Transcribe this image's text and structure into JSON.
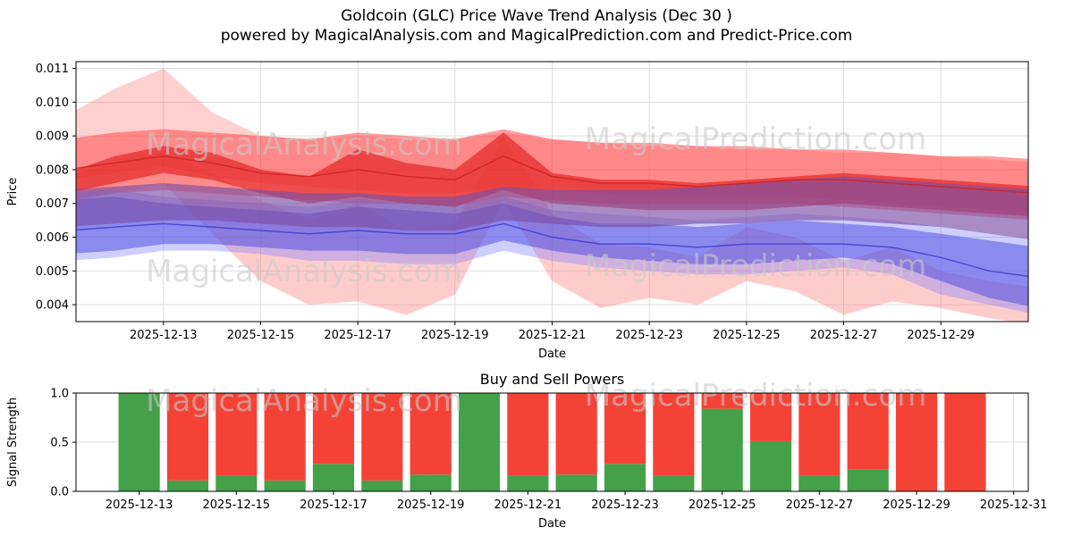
{
  "page": {
    "title_line1": "Goldcoin (GLC) Price Wave Trend Analysis (Dec 30 )",
    "title_line2": "powered by MagicalAnalysis.com and MagicalPrediction.com and Predict-Price.com"
  },
  "watermarks": {
    "left": "MagicalAnalysis.com",
    "right": "MagicalPrediction.com"
  },
  "chart_data": [
    {
      "type": "area",
      "name": "price-wave-trend",
      "xlabel": "Date",
      "ylabel": "Price",
      "ylim": [
        0.0035,
        0.0112
      ],
      "y_ticks": [
        0.004,
        0.005,
        0.006,
        0.007,
        0.008,
        0.009,
        0.01,
        0.011
      ],
      "x_ticks": [
        "2025-12-13",
        "2025-12-15",
        "2025-12-17",
        "2025-12-19",
        "2025-12-21",
        "2025-12-23",
        "2025-12-25",
        "2025-12-27",
        "2025-12-29"
      ],
      "x_dates": [
        "2025-12-11",
        "2025-12-12",
        "2025-12-13",
        "2025-12-14",
        "2025-12-15",
        "2025-12-16",
        "2025-12-17",
        "2025-12-18",
        "2025-12-19",
        "2025-12-20",
        "2025-12-21",
        "2025-12-22",
        "2025-12-23",
        "2025-12-24",
        "2025-12-25",
        "2025-12-26",
        "2025-12-27",
        "2025-12-28",
        "2025-12-29",
        "2025-12-30",
        "2025-12-31"
      ],
      "bands": [
        {
          "name": "outer-red-peak",
          "color": "#ff5555",
          "opacity": 0.28,
          "upper": [
            0.0096,
            0.0104,
            0.011,
            0.0097,
            0.009,
            0.0089,
            0.009,
            0.0089,
            0.0089,
            0.0091,
            0.0089,
            0.0088,
            0.0087,
            0.0087,
            0.0086,
            0.0086,
            0.0085,
            0.0085,
            0.0084,
            0.0083,
            0.0082
          ],
          "lower": [
            0.0077,
            0.0079,
            0.0081,
            0.0078,
            0.0076,
            0.0075,
            0.0074,
            0.0073,
            0.0073,
            0.0075,
            0.0074,
            0.0073,
            0.0072,
            0.0072,
            0.0072,
            0.0072,
            0.0071,
            0.007,
            0.0069,
            0.0068,
            0.0067
          ]
        },
        {
          "name": "main-red",
          "color": "#ff4040",
          "opacity": 0.5,
          "upper": [
            0.0089,
            0.0091,
            0.0092,
            0.0091,
            0.009,
            0.0089,
            0.0091,
            0.009,
            0.0089,
            0.0092,
            0.0089,
            0.0088,
            0.0088,
            0.0087,
            0.0087,
            0.0086,
            0.0086,
            0.0085,
            0.0084,
            0.0084,
            0.0083
          ],
          "lower": [
            0.0071,
            0.0073,
            0.0074,
            0.0073,
            0.0072,
            0.0071,
            0.007,
            0.007,
            0.0069,
            0.0072,
            0.0071,
            0.007,
            0.007,
            0.007,
            0.007,
            0.007,
            0.0069,
            0.0068,
            0.0067,
            0.0066,
            0.0065
          ]
        },
        {
          "name": "low-red-dip",
          "color": "#ff6060",
          "opacity": 0.32,
          "upper": [
            0.0078,
            0.0082,
            0.0085,
            0.0079,
            0.0071,
            0.0065,
            0.007,
            0.0062,
            0.0064,
            0.009,
            0.0067,
            0.0058,
            0.0057,
            0.0054,
            0.0063,
            0.006,
            0.0053,
            0.0057,
            0.005,
            0.0047,
            0.0045
          ],
          "lower": [
            0.007,
            0.0073,
            0.0076,
            0.0061,
            0.0047,
            0.004,
            0.0041,
            0.0037,
            0.0043,
            0.0071,
            0.0047,
            0.0039,
            0.0042,
            0.004,
            0.0047,
            0.0044,
            0.0037,
            0.0041,
            0.0039,
            0.0036,
            0.0034
          ]
        },
        {
          "name": "core-red",
          "color": "#e01818",
          "opacity": 0.6,
          "upper": [
            0.0079,
            0.0084,
            0.0087,
            0.0085,
            0.008,
            0.0078,
            0.0086,
            0.0082,
            0.008,
            0.0091,
            0.0079,
            0.0077,
            0.0077,
            0.0076,
            0.0077,
            0.0078,
            0.0079,
            0.0078,
            0.0077,
            0.0076,
            0.0075
          ],
          "lower": [
            0.0073,
            0.0076,
            0.0079,
            0.0077,
            0.0073,
            0.007,
            0.0072,
            0.007,
            0.0069,
            0.0074,
            0.007,
            0.0069,
            0.0068,
            0.0068,
            0.0068,
            0.0069,
            0.007,
            0.0069,
            0.0068,
            0.0067,
            0.0066
          ]
        },
        {
          "name": "light-blue",
          "color": "#8080ff",
          "opacity": 0.38,
          "upper": [
            0.0073,
            0.0074,
            0.0072,
            0.0071,
            0.007,
            0.0069,
            0.0071,
            0.007,
            0.0069,
            0.0072,
            0.0068,
            0.0067,
            0.0066,
            0.0065,
            0.0066,
            0.0067,
            0.0066,
            0.0065,
            0.0063,
            0.0061,
            0.0059
          ],
          "lower": [
            0.0053,
            0.0054,
            0.0056,
            0.0056,
            0.0055,
            0.0053,
            0.0053,
            0.0052,
            0.0052,
            0.0056,
            0.0053,
            0.0051,
            0.005,
            0.0049,
            0.0049,
            0.005,
            0.0051,
            0.0049,
            0.0043,
            0.004,
            0.0037
          ]
        },
        {
          "name": "main-blue",
          "color": "#4848e0",
          "opacity": 0.5,
          "upper": [
            0.0071,
            0.0072,
            0.007,
            0.0069,
            0.0068,
            0.0067,
            0.0069,
            0.0068,
            0.0067,
            0.007,
            0.0066,
            0.0064,
            0.0064,
            0.0063,
            0.0064,
            0.0065,
            0.0064,
            0.0063,
            0.0061,
            0.0059,
            0.0057
          ],
          "lower": [
            0.0055,
            0.0056,
            0.0058,
            0.0058,
            0.0057,
            0.0056,
            0.0056,
            0.0055,
            0.0055,
            0.0059,
            0.0056,
            0.0054,
            0.0053,
            0.0052,
            0.0052,
            0.0053,
            0.0054,
            0.0052,
            0.0047,
            0.0042,
            0.0039
          ]
        },
        {
          "name": "purple-overlap",
          "color": "#7b4fa6",
          "opacity": 0.65,
          "upper": [
            0.0074,
            0.0075,
            0.0076,
            0.0075,
            0.0074,
            0.0073,
            0.0073,
            0.0072,
            0.0072,
            0.0075,
            0.0074,
            0.0074,
            0.0074,
            0.0075,
            0.0076,
            0.0077,
            0.0078,
            0.0077,
            0.0076,
            0.0075,
            0.0074
          ],
          "lower": [
            0.0063,
            0.0064,
            0.0065,
            0.0065,
            0.0064,
            0.0063,
            0.0063,
            0.0062,
            0.0062,
            0.0065,
            0.0064,
            0.0063,
            0.0063,
            0.0064,
            0.0064,
            0.0065,
            0.0065,
            0.0064,
            0.0063,
            0.0061,
            0.0059
          ]
        }
      ],
      "lines": [
        {
          "name": "red-median",
          "color": "#d02020",
          "opacity": 0.8,
          "values": [
            0.008,
            0.0082,
            0.0084,
            0.0082,
            0.0079,
            0.0078,
            0.008,
            0.0078,
            0.0077,
            0.0084,
            0.0078,
            0.0076,
            0.0076,
            0.0075,
            0.0076,
            0.0077,
            0.0077,
            0.0076,
            0.0075,
            0.0074,
            0.0073
          ]
        },
        {
          "name": "blue-median",
          "color": "#3a3ad0",
          "opacity": 0.8,
          "values": [
            0.0062,
            0.0063,
            0.0064,
            0.0063,
            0.0062,
            0.0061,
            0.0062,
            0.0061,
            0.0061,
            0.0064,
            0.006,
            0.0058,
            0.0058,
            0.0057,
            0.0058,
            0.0058,
            0.0058,
            0.0057,
            0.0054,
            0.005,
            0.0048
          ]
        }
      ]
    },
    {
      "type": "bar",
      "name": "buy-sell-powers",
      "title": "Buy and Sell Powers",
      "xlabel": "Date",
      "ylabel": "Signal Strength",
      "ylim": [
        0,
        1.0
      ],
      "y_ticks": [
        0.0,
        0.5,
        1.0
      ],
      "x_ticks": [
        "2025-12-13",
        "2025-12-15",
        "2025-12-17",
        "2025-12-19",
        "2025-12-21",
        "2025-12-23",
        "2025-12-25",
        "2025-12-27",
        "2025-12-29",
        "2025-12-31"
      ],
      "categories": [
        "2025-12-13",
        "2025-12-14",
        "2025-12-15",
        "2025-12-16",
        "2025-12-17",
        "2025-12-18",
        "2025-12-19",
        "2025-12-20",
        "2025-12-21",
        "2025-12-22",
        "2025-12-23",
        "2025-12-24",
        "2025-12-25",
        "2025-12-26",
        "2025-12-27",
        "2025-12-28",
        "2025-12-29",
        "2025-12-30"
      ],
      "series": [
        {
          "name": "Buy",
          "color": "#44a049",
          "values": [
            1.0,
            0.11,
            0.16,
            0.11,
            0.28,
            0.11,
            0.17,
            1.0,
            0.16,
            0.17,
            0.28,
            0.16,
            0.84,
            0.51,
            0.16,
            0.22,
            0.0,
            0.0
          ]
        },
        {
          "name": "Sell",
          "color": "#f44336",
          "values": [
            0.0,
            0.89,
            0.84,
            0.89,
            0.72,
            0.89,
            0.83,
            0.0,
            0.84,
            0.83,
            0.72,
            0.84,
            0.16,
            0.49,
            0.84,
            0.78,
            1.0,
            1.0
          ]
        }
      ]
    }
  ]
}
